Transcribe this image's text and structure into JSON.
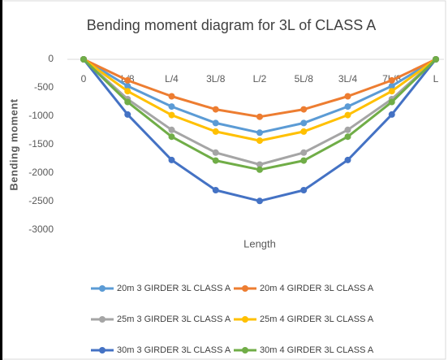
{
  "chart_data": {
    "type": "line",
    "title": "Bending moment diagram for 3L of CLASS A",
    "x_label": "Length",
    "y_label": "Bending moment",
    "categories": [
      "0",
      "L/8",
      "L/4",
      "3L/8",
      "L/2",
      "5L/8",
      "3L/4",
      "7L/8",
      "L"
    ],
    "ylim": [
      -3000,
      0
    ],
    "yticks": [
      0,
      -500,
      -1000,
      -1500,
      -2000,
      -2500,
      -3000
    ],
    "grid": false,
    "legend": "bottom",
    "series": [
      {
        "name": "20m 3 GIRDER 3L CLASS A",
        "color": "#5b9bd5",
        "values": [
          0,
          -470,
          -830,
          -1120,
          -1290,
          -1120,
          -830,
          -470,
          0
        ]
      },
      {
        "name": "20m 4 GIRDER 3L CLASS A",
        "color": "#ed7d31",
        "values": [
          0,
          -370,
          -650,
          -880,
          -1010,
          -880,
          -650,
          -370,
          0
        ]
      },
      {
        "name": "25m 3 GIRDER 3L CLASS A",
        "color": "#a5a5a5",
        "values": [
          0,
          -700,
          -1240,
          -1640,
          -1850,
          -1640,
          -1240,
          -700,
          0
        ]
      },
      {
        "name": "25m 4 GIRDER 3L CLASS A",
        "color": "#ffc000",
        "values": [
          0,
          -560,
          -980,
          -1270,
          -1430,
          -1270,
          -980,
          -560,
          0
        ]
      },
      {
        "name": "30m 3 GIRDER 3L CLASS A",
        "color": "#4472c4",
        "values": [
          0,
          -970,
          -1770,
          -2300,
          -2490,
          -2300,
          -1770,
          -970,
          0
        ]
      },
      {
        "name": "30m 4 GIRDER 3L CLASS A",
        "color": "#70ad47",
        "values": [
          0,
          -750,
          -1360,
          -1780,
          -1940,
          -1780,
          -1360,
          -750,
          0
        ]
      }
    ]
  }
}
